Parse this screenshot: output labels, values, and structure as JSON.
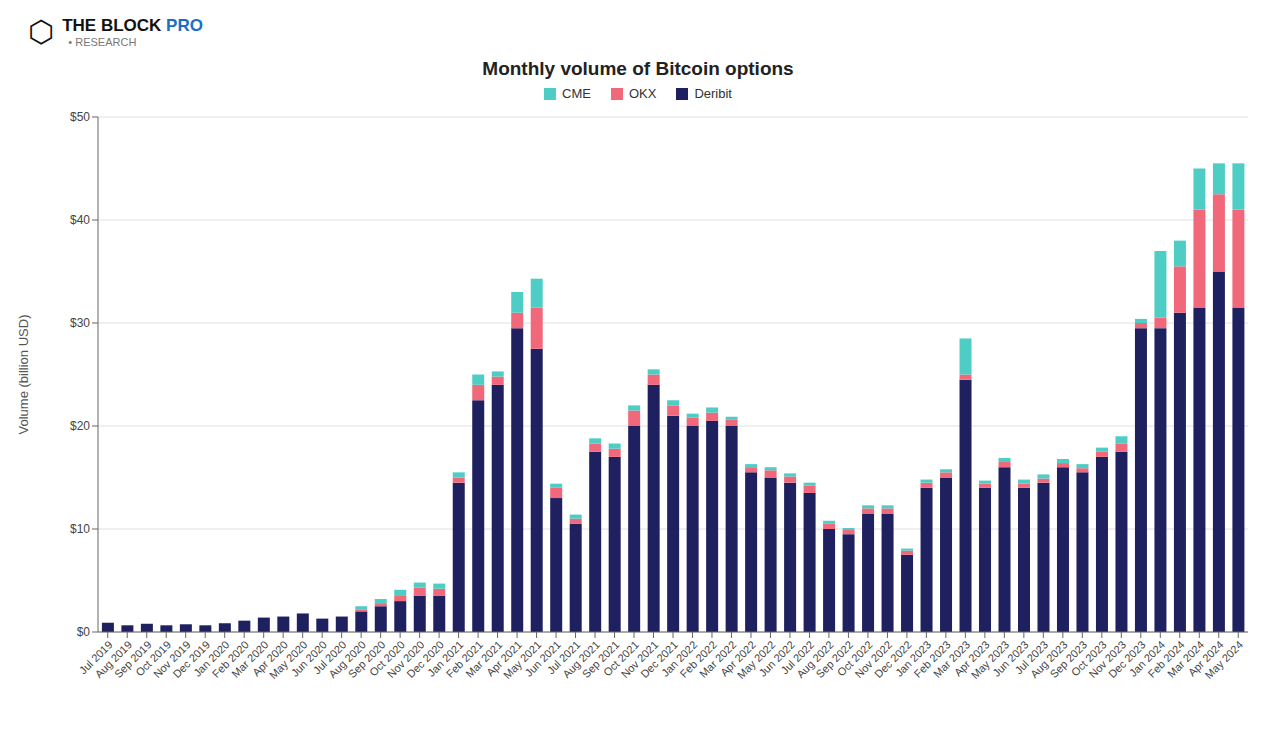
{
  "chart_data": {
    "type": "bar",
    "stacked": true,
    "title": "Monthly volume of Bitcoin options",
    "y_label": "Volume (billion USD)",
    "annotations": [
      "⬡",
      "THE BLOCK",
      " PRO",
      "  • RESEARCH"
    ],
    "categories": [
      "Jul 2019",
      "Aug 2019",
      "Sep 2019",
      "Oct 2019",
      "Nov 2019",
      "Dec 2019",
      "Jan 2020",
      "Feb 2020",
      "Mar 2020",
      "Apr 2020",
      "May 2020",
      "Jun 2020",
      "Jul 2020",
      "Aug 2020",
      "Sep 2020",
      "Oct 2020",
      "Nov 2020",
      "Dec 2020",
      "Jan 2021",
      "Feb 2021",
      "Mar 2021",
      "Apr 2021",
      "May 2021",
      "Jun 2021",
      "Jul 2021",
      "Aug 2021",
      "Sep 2021",
      "Oct 2021",
      "Nov 2021",
      "Dec 2021",
      "Jan 2022",
      "Feb 2022",
      "Mar 2022",
      "Apr 2022",
      "May 2022",
      "Jun 2022",
      "Jul 2022",
      "Aug 2022",
      "Sep 2022",
      "Oct 2022",
      "Nov 2022",
      "Dec 2022",
      "Jan 2023",
      "Feb 2023",
      "Mar 2023",
      "Apr 2023",
      "May 2023",
      "Jun 2023",
      "Jul 2023",
      "Aug 2023",
      "Sep 2023",
      "Oct 2023",
      "Nov 2023",
      "Dec 2023",
      "Jan 2024",
      "Feb 2024",
      "Mar 2024",
      "Apr 2024",
      "May 2024"
    ],
    "series": [
      {
        "name": "Deribit",
        "color": "#1e2060",
        "values": [
          0.9,
          0.65,
          0.8,
          0.65,
          0.75,
          0.65,
          0.85,
          1.1,
          1.4,
          1.5,
          1.8,
          1.3,
          1.5,
          2.0,
          2.5,
          3.0,
          3.5,
          3.5,
          14.5,
          22.5,
          24.0,
          29.5,
          27.5,
          13.0,
          10.5,
          17.5,
          17.0,
          20.0,
          24.0,
          21.0,
          20.0,
          20.5,
          20.0,
          15.5,
          15.0,
          14.5,
          13.5,
          10.0,
          9.5,
          11.5,
          11.5,
          7.5,
          14.0,
          15.0,
          24.5,
          14.0,
          16.0,
          14.0,
          14.5,
          16.0,
          15.5,
          17.0,
          17.5,
          29.5,
          29.5,
          31.0,
          31.5,
          35.0,
          31.5
        ]
      },
      {
        "name": "OKX",
        "color": "#f0687a",
        "values": [
          0.0,
          0.0,
          0.0,
          0.0,
          0.0,
          0.0,
          0.0,
          0.0,
          0.0,
          0.0,
          0.0,
          0.0,
          0.0,
          0.2,
          0.3,
          0.5,
          0.8,
          0.7,
          0.5,
          1.5,
          0.8,
          1.5,
          4.0,
          1.0,
          0.5,
          0.8,
          0.8,
          1.5,
          1.0,
          1.0,
          0.8,
          0.8,
          0.6,
          0.5,
          0.7,
          0.6,
          0.7,
          0.5,
          0.4,
          0.5,
          0.5,
          0.4,
          0.5,
          0.5,
          0.5,
          0.4,
          0.5,
          0.4,
          0.4,
          0.4,
          0.4,
          0.5,
          0.8,
          0.5,
          1.0,
          4.5,
          9.5,
          7.5,
          9.5
        ]
      },
      {
        "name": "CME",
        "color": "#4ecdc4",
        "values": [
          0.0,
          0.0,
          0.0,
          0.0,
          0.0,
          0.0,
          0.0,
          0.0,
          0.0,
          0.0,
          0.0,
          0.0,
          0.0,
          0.3,
          0.4,
          0.6,
          0.5,
          0.5,
          0.5,
          1.0,
          0.5,
          2.0,
          2.8,
          0.4,
          0.4,
          0.5,
          0.5,
          0.5,
          0.5,
          0.5,
          0.4,
          0.5,
          0.3,
          0.3,
          0.3,
          0.3,
          0.3,
          0.3,
          0.2,
          0.3,
          0.3,
          0.2,
          0.3,
          0.3,
          3.5,
          0.3,
          0.4,
          0.4,
          0.4,
          0.4,
          0.4,
          0.4,
          0.7,
          0.4,
          6.5,
          2.5,
          4.0,
          3.0,
          4.5
        ]
      }
    ],
    "ylim": [
      0,
      50
    ],
    "yticks": [
      {
        "value": 0,
        "label": "$0"
      },
      {
        "value": 10,
        "label": "$10"
      },
      {
        "value": 20,
        "label": "$20"
      },
      {
        "value": 30,
        "label": "$30"
      },
      {
        "value": 40,
        "label": "$40"
      },
      {
        "value": 50,
        "label": "$50"
      }
    ],
    "grid": true,
    "legend": "top"
  }
}
